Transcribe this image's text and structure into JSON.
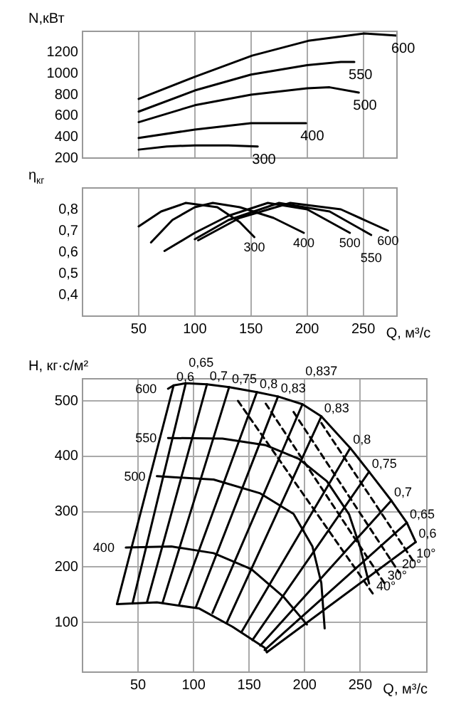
{
  "chart_data": [
    {
      "type": "line",
      "ylabel": "N,кВт",
      "xlim": [
        0,
        280
      ],
      "xticks": [
        50,
        100,
        150,
        200,
        250
      ],
      "ylim": [
        200,
        1400
      ],
      "yticks": [
        200,
        400,
        600,
        800,
        1000,
        1200
      ],
      "grid": "x",
      "tick_labels": "y",
      "series": [
        {
          "name": "600",
          "color": "#000000",
          "x": [
            50,
            100,
            151,
            201,
            251,
            280
          ],
          "values": [
            760,
            970,
            1170,
            1310,
            1380,
            1360
          ]
        },
        {
          "name": "550",
          "color": "#000000",
          "x": [
            50,
            100,
            150,
            200,
            230,
            242
          ],
          "values": [
            640,
            840,
            990,
            1080,
            1110,
            1110
          ]
        },
        {
          "name": "500",
          "color": "#000000",
          "x": [
            50,
            100,
            150,
            200,
            220,
            246
          ],
          "values": [
            540,
            700,
            800,
            860,
            870,
            820
          ]
        },
        {
          "name": "400",
          "color": "#000000",
          "x": [
            50,
            100,
            150,
            190,
            199
          ],
          "values": [
            390,
            470,
            530,
            530,
            530
          ]
        },
        {
          "name": "300",
          "color": "#000000",
          "x": [
            50,
            75,
            100,
            130,
            156
          ],
          "values": [
            280,
            310,
            320,
            320,
            310
          ]
        }
      ]
    },
    {
      "type": "line",
      "ylabel": "η$_{кг}$",
      "xlabel": "Q, м³/с",
      "xlim": [
        0,
        280
      ],
      "xticks": [
        50,
        100,
        150,
        200,
        250
      ],
      "ylim": [
        0.3,
        0.9
      ],
      "yticks": [
        {
          "value": 0.4,
          "label": "0,4"
        },
        {
          "value": 0.5,
          "label": "0,5"
        },
        {
          "value": 0.6,
          "label": "0,6"
        },
        {
          "value": 0.7,
          "label": "0,7"
        },
        {
          "value": 0.8,
          "label": "0,8"
        }
      ],
      "grid": "x",
      "series": [
        {
          "name": "300",
          "color": "#000000",
          "x": [
            50,
            70,
            92,
            120,
            140,
            153
          ],
          "values": [
            0.72,
            0.79,
            0.83,
            0.81,
            0.74,
            0.67
          ]
        },
        {
          "name": "400",
          "color": "#000000",
          "x": [
            61,
            80,
            100,
            116,
            140,
            170,
            197
          ],
          "values": [
            0.645,
            0.75,
            0.81,
            0.83,
            0.81,
            0.76,
            0.69
          ]
        },
        {
          "name": "500",
          "color": "#000000",
          "x": [
            73,
            100,
            130,
            165,
            200,
            238
          ],
          "values": [
            0.605,
            0.69,
            0.77,
            0.83,
            0.8,
            0.69
          ]
        },
        {
          "name": "550",
          "color": "#000000",
          "x": [
            100,
            130,
            175,
            220,
            257
          ],
          "values": [
            0.66,
            0.75,
            0.83,
            0.79,
            0.68
          ]
        },
        {
          "name": "600",
          "color": "#000000",
          "x": [
            103,
            140,
            185,
            230,
            272
          ],
          "values": [
            0.655,
            0.76,
            0.83,
            0.8,
            0.7
          ]
        }
      ]
    },
    {
      "type": "line",
      "ylabel": "H, кг·с/м²",
      "xlabel": "Q, м³/с",
      "xlim": [
        0,
        310
      ],
      "xticks": [
        50,
        100,
        150,
        200,
        250
      ],
      "ylim": [
        10,
        540
      ],
      "yticks": [
        100,
        200,
        300,
        400,
        500
      ],
      "grid": true,
      "series": [
        {
          "name": "600",
          "color": "#000000",
          "x": [
            300,
            292,
            278,
            258,
            241,
            215,
            198,
            176,
            157,
            132,
            112,
            93,
            82,
            77
          ],
          "values": [
            245,
            280,
            320,
            372,
            415,
            472,
            494,
            508,
            516,
            525,
            530,
            532,
            528,
            522
          ]
        },
        {
          "name": "550",
          "color": "#000000",
          "x": [
            258,
            250,
            240,
            220,
            195,
            165,
            126,
            77
          ],
          "values": [
            170,
            235,
            295,
            355,
            395,
            420,
            432,
            433
          ]
        },
        {
          "name": "500",
          "color": "#000000",
          "x": [
            218,
            215,
            207,
            190,
            160,
            118,
            67
          ],
          "values": [
            89,
            171,
            237,
            296,
            333,
            358,
            364
          ]
        },
        {
          "name": "400",
          "color": "#000000",
          "x": [
            202,
            181,
            152,
            118,
            80,
            39
          ],
          "values": [
            96,
            146,
            196,
            225,
            237,
            235
          ]
        },
        {
          "color": "#000000",
          "x": [
            166,
            164,
            135,
            105,
            67,
            31
          ],
          "values": [
            46,
            54,
            92,
            125,
            136,
            133
          ]
        },
        {
          "name": "0,6",
          "color": "#000000",
          "x": [
            31,
            82
          ],
          "values": [
            133,
            528
          ]
        },
        {
          "name": "0,65",
          "color": "#000000",
          "x": [
            45,
            93
          ],
          "values": [
            134,
            532
          ]
        },
        {
          "name": "0,7",
          "color": "#000000",
          "x": [
            58,
            112
          ],
          "values": [
            136,
            530
          ]
        },
        {
          "name": "0,75",
          "color": "#000000",
          "x": [
            72,
            132
          ],
          "values": [
            135,
            525
          ]
        },
        {
          "name": "0,8",
          "color": "#000000",
          "x": [
            87,
            157
          ],
          "values": [
            132,
            516
          ]
        },
        {
          "name": "0,83",
          "color": "#000000",
          "x": [
            102,
            176
          ],
          "values": [
            127,
            508
          ]
        },
        {
          "name": "0,837",
          "color": "#000000",
          "x": [
            117,
            198
          ],
          "values": [
            117,
            494
          ]
        },
        {
          "name": "0,83",
          "color": "#000000",
          "x": [
            130,
            215
          ],
          "values": [
            100,
            472
          ]
        },
        {
          "name": "0,8",
          "color": "#000000",
          "x": [
            143,
            241
          ],
          "values": [
            82,
            415
          ]
        },
        {
          "name": "0,75",
          "color": "#000000",
          "x": [
            153,
            258
          ],
          "values": [
            68,
            372
          ]
        },
        {
          "name": "0,7",
          "color": "#000000",
          "x": [
            160,
            278
          ],
          "values": [
            58,
            320
          ]
        },
        {
          "name": "0,65",
          "color": "#000000",
          "x": [
            164,
            292
          ],
          "values": [
            50,
            280
          ]
        },
        {
          "name": "0,6",
          "color": "#000000",
          "x": [
            166,
            300
          ],
          "values": [
            46,
            245
          ]
        },
        {
          "name": "40°",
          "color": "#000000",
          "line_style": "dashed",
          "x": [
            140,
            262
          ],
          "values": [
            500,
            150
          ]
        },
        {
          "name": "30°",
          "color": "#000000",
          "line_style": "dashed",
          "x": [
            165,
            272
          ],
          "values": [
            495,
            170
          ]
        },
        {
          "name": "20°",
          "color": "#000000",
          "line_style": "dashed",
          "x": [
            190,
            285
          ],
          "values": [
            480,
            190
          ]
        },
        {
          "name": "10°",
          "color": "#000000",
          "line_style": "dashed",
          "x": [
            215,
            298
          ],
          "values": [
            460,
            210
          ]
        }
      ]
    }
  ]
}
